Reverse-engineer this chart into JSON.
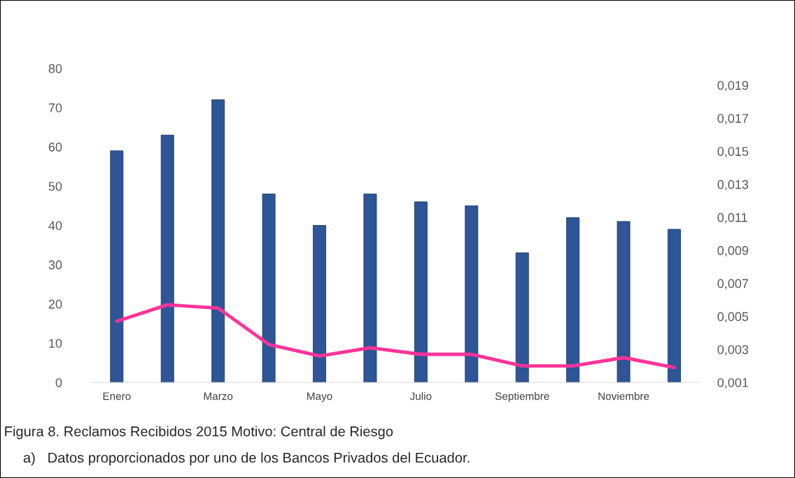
{
  "chart_data": {
    "type": "bar",
    "categories": [
      "Enero",
      null,
      "Marzo",
      null,
      "Mayo",
      null,
      "Julio",
      null,
      "Septiembre",
      null,
      "Noviembre",
      null
    ],
    "series": [
      {
        "color": "#2e5596",
        "values": [
          59,
          63,
          72,
          48,
          40,
          48,
          46,
          45,
          33,
          42,
          41,
          39
        ]
      },
      {
        "type": "line",
        "axis": "y2",
        "color": "#ff3399",
        "values": [
          0.0047,
          0.0057,
          0.0055,
          0.0033,
          0.0026,
          0.0031,
          0.0027,
          0.0027,
          0.002,
          0.002,
          0.0025,
          0.0019
        ]
      }
    ],
    "ylim": [
      0,
      80
    ],
    "yticks": [
      0,
      10,
      20,
      30,
      40,
      50,
      60,
      70,
      80
    ],
    "y2lim": [
      0.001,
      0.019
    ],
    "y2ticks": [
      {
        "value": 0.001,
        "label": "0,001"
      },
      {
        "value": 0.003,
        "label": "0,003"
      },
      {
        "value": 0.005,
        "label": "0,005"
      },
      {
        "value": 0.007,
        "label": "0,007"
      },
      {
        "value": 0.009,
        "label": "0,009"
      },
      {
        "value": 0.011,
        "label": "0,011"
      },
      {
        "value": 0.013,
        "label": "0,013"
      },
      {
        "value": 0.015,
        "label": "0,015"
      },
      {
        "value": 0.017,
        "label": "0,017"
      },
      {
        "value": 0.019,
        "label": "0,019"
      }
    ],
    "grid": false,
    "marker": "none",
    "line_style": "solid",
    "annotations": [
      "Figura 8. Reclamos Recibidos 2015 Motivo: Central de Riesgo",
      "a)   Datos proporcionados por uno de los Bancos Privados del Ecuador."
    ]
  }
}
